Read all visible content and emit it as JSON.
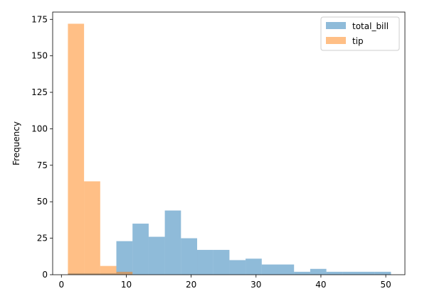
{
  "chart_data": {
    "type": "histogram",
    "xlabel": "",
    "ylabel": "Frequency",
    "xlim": [
      -1.35,
      52.95
    ],
    "ylim": [
      0,
      180
    ],
    "xticks": [
      0,
      10,
      20,
      30,
      40,
      50
    ],
    "yticks": [
      0,
      25,
      50,
      75,
      100,
      125,
      150,
      175
    ],
    "legend_position": "top-right",
    "grid": false,
    "series": [
      {
        "name": "total_bill",
        "color": "#1f77b4",
        "alpha": 0.5,
        "bin_start": 1.0,
        "bin_width": 2.49,
        "values": [
          1,
          1,
          1,
          23,
          35,
          26,
          44,
          25,
          17,
          17,
          10,
          11,
          7,
          7,
          2,
          4,
          2,
          2,
          2,
          2
        ]
      },
      {
        "name": "tip",
        "color": "#ff7f0e",
        "alpha": 0.5,
        "bin_start": 1.0,
        "bin_width": 2.49,
        "values": [
          172,
          64,
          6,
          2,
          0,
          0,
          0,
          0,
          0,
          0,
          0,
          0,
          0,
          0,
          0,
          0,
          0,
          0,
          0,
          0
        ]
      }
    ]
  }
}
